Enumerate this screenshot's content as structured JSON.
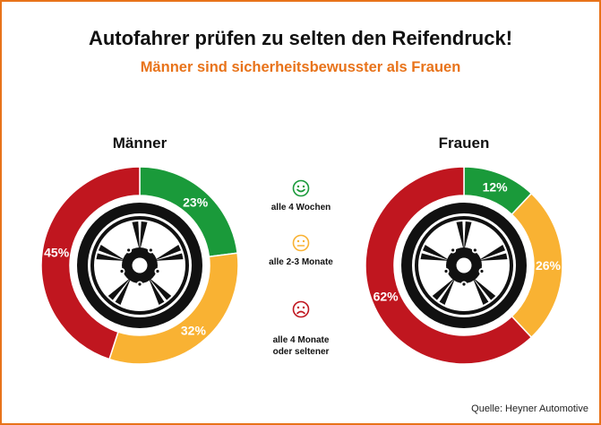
{
  "title": "Autofahrer prüfen zu selten den Reifendruck!",
  "subtitle": "Männer sind sicherheitsbewusster als Frauen",
  "source": "Quelle: Heyner Automotive",
  "colors": {
    "green": "#1a9a3a",
    "yellow": "#f9b233",
    "red": "#c0161f",
    "accent": "#e8731a"
  },
  "legend": [
    {
      "label": "alle 4 Wochen",
      "icon": "happy-face-icon",
      "color": "#1a9a3a"
    },
    {
      "label": "alle 2-3 Monate",
      "icon": "neutral-face-icon",
      "color": "#f9b233"
    },
    {
      "label": "alle 4 Monate\noder seltener",
      "icon": "sad-face-icon",
      "color": "#c0161f"
    }
  ],
  "chart_data": [
    {
      "type": "pie",
      "title": "Männer",
      "categories": [
        "alle 4 Wochen",
        "alle 2-3 Monate",
        "alle 4 Monate oder seltener"
      ],
      "values": [
        23,
        32,
        45
      ],
      "labels": [
        "23%",
        "32%",
        "45%"
      ]
    },
    {
      "type": "pie",
      "title": "Frauen",
      "categories": [
        "alle 4 Wochen",
        "alle 2-3 Monate",
        "alle 4 Monate oder seltener"
      ],
      "values": [
        12,
        26,
        62
      ],
      "labels": [
        "12%",
        "26%",
        "62%"
      ]
    }
  ]
}
